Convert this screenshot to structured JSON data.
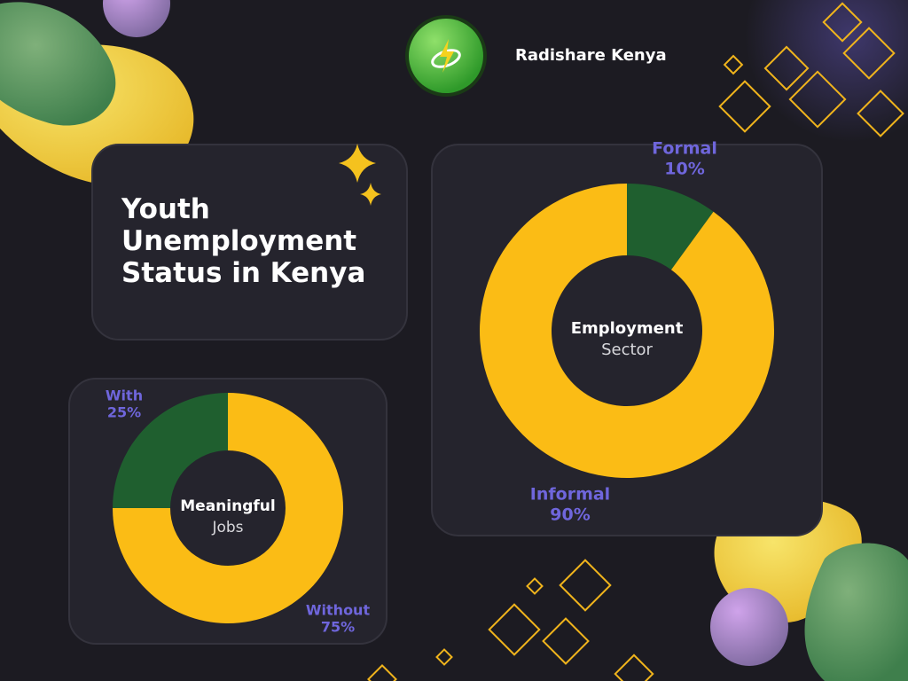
{
  "brand": "Radishare Kenya",
  "title": "Youth Unemployment Status in Kenya",
  "chart_data": [
    {
      "type": "pie",
      "center_title": "Employment",
      "center_subtitle": "Sector",
      "categories": [
        "Formal",
        "Informal"
      ],
      "values": [
        10,
        90
      ],
      "value_labels": [
        "10%",
        "90%"
      ],
      "colors": [
        "#1f5f2f",
        "#fbbc15"
      ]
    },
    {
      "type": "pie",
      "center_title": "Meaningful",
      "center_subtitle": "Jobs",
      "categories": [
        "Without",
        "With"
      ],
      "values": [
        75,
        25
      ],
      "value_labels": [
        "75%",
        "25%"
      ],
      "colors": [
        "#fbbc15",
        "#1f5f2f"
      ]
    }
  ]
}
